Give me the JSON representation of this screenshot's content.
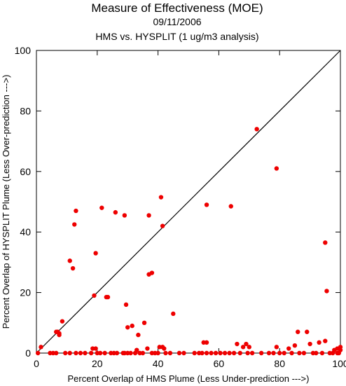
{
  "chart_data": {
    "type": "scatter",
    "title": "Measure of Effectiveness (MOE)",
    "subtitle": "09/11/2006",
    "subtitle2": "HMS vs. HYSPLIT  (1 ug/m3 analysis)",
    "xlabel": "Percent Overlap of HMS Plume (Less Under-prediction --->)",
    "ylabel": "Percent Overlap of HYSPLIT Plume (Less Over-prediction --->)",
    "xlim": [
      0,
      100
    ],
    "ylim": [
      0,
      100
    ],
    "x_ticks": [
      "0",
      "20",
      "40",
      "60",
      "80",
      "100"
    ],
    "y_ticks": [
      "0",
      "20",
      "40",
      "60",
      "80",
      "100"
    ],
    "grid": false,
    "reference_line": "y = x",
    "point_color": "#ee0000",
    "points": [
      {
        "x": 1.5,
        "y": 2
      },
      {
        "x": 6.5,
        "y": 7
      },
      {
        "x": 7,
        "y": 7
      },
      {
        "x": 7.5,
        "y": 6.5
      },
      {
        "x": 7.5,
        "y": 6
      },
      {
        "x": 8.5,
        "y": 10.5
      },
      {
        "x": 11,
        "y": 30.5
      },
      {
        "x": 12,
        "y": 28
      },
      {
        "x": 12.5,
        "y": 42.5
      },
      {
        "x": 13,
        "y": 47
      },
      {
        "x": 19,
        "y": 19
      },
      {
        "x": 19.5,
        "y": 33
      },
      {
        "x": 21.5,
        "y": 48
      },
      {
        "x": 23,
        "y": 18.5
      },
      {
        "x": 23.5,
        "y": 18.5
      },
      {
        "x": 26,
        "y": 46.5
      },
      {
        "x": 29,
        "y": 45.5
      },
      {
        "x": 29.5,
        "y": 16
      },
      {
        "x": 30,
        "y": 8.5
      },
      {
        "x": 31.5,
        "y": 9
      },
      {
        "x": 33.5,
        "y": 6
      },
      {
        "x": 35.5,
        "y": 10
      },
      {
        "x": 37,
        "y": 45.5
      },
      {
        "x": 37,
        "y": 26
      },
      {
        "x": 38,
        "y": 26.5
      },
      {
        "x": 41,
        "y": 51.5
      },
      {
        "x": 41.5,
        "y": 42
      },
      {
        "x": 45,
        "y": 13
      },
      {
        "x": 56,
        "y": 49
      },
      {
        "x": 64,
        "y": 48.5
      },
      {
        "x": 72.5,
        "y": 74
      },
      {
        "x": 79,
        "y": 61
      },
      {
        "x": 95,
        "y": 36.5
      },
      {
        "x": 95.5,
        "y": 20.5
      },
      {
        "x": 86,
        "y": 7
      },
      {
        "x": 89,
        "y": 7
      },
      {
        "x": 93,
        "y": 3.5
      },
      {
        "x": 95,
        "y": 4
      },
      {
        "x": 55,
        "y": 3.5
      },
      {
        "x": 56,
        "y": 3.5
      },
      {
        "x": 66,
        "y": 3
      },
      {
        "x": 68,
        "y": 2
      },
      {
        "x": 69,
        "y": 3
      },
      {
        "x": 70,
        "y": 2
      },
      {
        "x": 79,
        "y": 2
      },
      {
        "x": 83,
        "y": 1.5
      },
      {
        "x": 85,
        "y": 2.5
      },
      {
        "x": 90,
        "y": 3
      },
      {
        "x": 98,
        "y": 1
      },
      {
        "x": 99,
        "y": 1.5
      },
      {
        "x": 100,
        "y": 1
      },
      {
        "x": 100,
        "y": 2
      },
      {
        "x": 18.5,
        "y": 1.5
      },
      {
        "x": 19.5,
        "y": 1.5
      },
      {
        "x": 33,
        "y": 1
      },
      {
        "x": 36.5,
        "y": 1.5
      },
      {
        "x": 40.5,
        "y": 2
      },
      {
        "x": 41.5,
        "y": 2
      },
      {
        "x": 42,
        "y": 1.5
      },
      {
        "x": 0.5,
        "y": 0
      },
      {
        "x": 4.5,
        "y": 0
      },
      {
        "x": 5.5,
        "y": 0
      },
      {
        "x": 6.5,
        "y": 0
      },
      {
        "x": 9.5,
        "y": 0
      },
      {
        "x": 11,
        "y": 0
      },
      {
        "x": 13,
        "y": 0
      },
      {
        "x": 14.5,
        "y": 0
      },
      {
        "x": 16,
        "y": 0
      },
      {
        "x": 18,
        "y": 0
      },
      {
        "x": 20,
        "y": 0
      },
      {
        "x": 21,
        "y": 0
      },
      {
        "x": 22.5,
        "y": 0
      },
      {
        "x": 24.5,
        "y": 0
      },
      {
        "x": 25.5,
        "y": 0
      },
      {
        "x": 26.5,
        "y": 0
      },
      {
        "x": 28.5,
        "y": 0
      },
      {
        "x": 29,
        "y": 0
      },
      {
        "x": 30,
        "y": 0
      },
      {
        "x": 31,
        "y": 0
      },
      {
        "x": 32.5,
        "y": 0
      },
      {
        "x": 34,
        "y": 0
      },
      {
        "x": 35,
        "y": 0
      },
      {
        "x": 38,
        "y": 0
      },
      {
        "x": 39,
        "y": 0
      },
      {
        "x": 40,
        "y": 0
      },
      {
        "x": 42.5,
        "y": 0
      },
      {
        "x": 44,
        "y": 0
      },
      {
        "x": 47,
        "y": 0
      },
      {
        "x": 48.5,
        "y": 0
      },
      {
        "x": 52,
        "y": 0
      },
      {
        "x": 53.5,
        "y": 0
      },
      {
        "x": 54.5,
        "y": 0
      },
      {
        "x": 56,
        "y": 0
      },
      {
        "x": 57.5,
        "y": 0
      },
      {
        "x": 59,
        "y": 0
      },
      {
        "x": 60.5,
        "y": 0
      },
      {
        "x": 62,
        "y": 0
      },
      {
        "x": 63.5,
        "y": 0
      },
      {
        "x": 65,
        "y": 0
      },
      {
        "x": 67,
        "y": 0
      },
      {
        "x": 69.5,
        "y": 0
      },
      {
        "x": 71,
        "y": 0
      },
      {
        "x": 74,
        "y": 0
      },
      {
        "x": 76.5,
        "y": 0
      },
      {
        "x": 78,
        "y": 0
      },
      {
        "x": 80,
        "y": 0
      },
      {
        "x": 81.5,
        "y": 0
      },
      {
        "x": 84,
        "y": 0
      },
      {
        "x": 86.5,
        "y": 0
      },
      {
        "x": 88,
        "y": 0
      },
      {
        "x": 91,
        "y": 0
      },
      {
        "x": 92,
        "y": 0
      },
      {
        "x": 94,
        "y": 0
      },
      {
        "x": 96.5,
        "y": 0
      },
      {
        "x": 97.5,
        "y": 0
      },
      {
        "x": 99,
        "y": 0
      },
      {
        "x": 99.5,
        "y": 0
      }
    ]
  }
}
